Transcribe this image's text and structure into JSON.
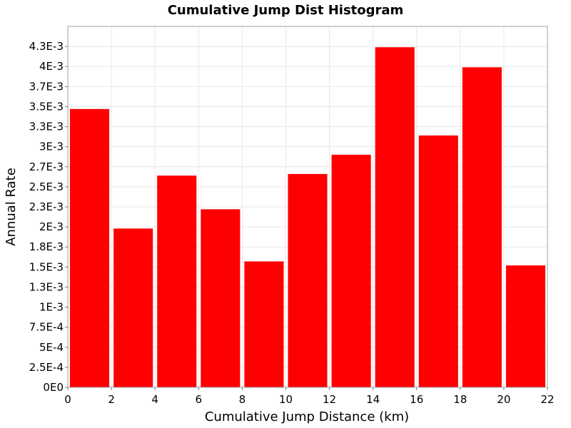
{
  "chart_data": {
    "type": "bar",
    "title": "Cumulative Jump Dist Histogram",
    "xlabel": "Cumulative Jump Distance (km)",
    "ylabel": "Annual Rate",
    "xlim": [
      0,
      22
    ],
    "ylim": [
      0,
      0.0045
    ],
    "grid": true,
    "bar_color": "#ff0000",
    "bin_width": 2,
    "bins": [
      {
        "x_start": 0,
        "x_end": 2,
        "value": 0.00347
      },
      {
        "x_start": 2,
        "x_end": 4,
        "value": 0.00198
      },
      {
        "x_start": 4,
        "x_end": 6,
        "value": 0.00264
      },
      {
        "x_start": 6,
        "x_end": 8,
        "value": 0.00222
      },
      {
        "x_start": 8,
        "x_end": 10,
        "value": 0.00157
      },
      {
        "x_start": 10,
        "x_end": 12,
        "value": 0.00266
      },
      {
        "x_start": 12,
        "x_end": 14,
        "value": 0.0029
      },
      {
        "x_start": 14,
        "x_end": 16,
        "value": 0.00424
      },
      {
        "x_start": 16,
        "x_end": 18,
        "value": 0.00314
      },
      {
        "x_start": 18,
        "x_end": 20,
        "value": 0.00399
      },
      {
        "x_start": 20,
        "x_end": 22,
        "value": 0.00152
      }
    ],
    "x_ticks": [
      {
        "value": 0,
        "label": "0"
      },
      {
        "value": 2,
        "label": "2"
      },
      {
        "value": 4,
        "label": "4"
      },
      {
        "value": 6,
        "label": "6"
      },
      {
        "value": 8,
        "label": "8"
      },
      {
        "value": 10,
        "label": "10"
      },
      {
        "value": 12,
        "label": "12"
      },
      {
        "value": 14,
        "label": "14"
      },
      {
        "value": 16,
        "label": "16"
      },
      {
        "value": 18,
        "label": "18"
      },
      {
        "value": 20,
        "label": "20"
      },
      {
        "value": 22,
        "label": "22"
      }
    ],
    "y_ticks": [
      {
        "value": 0,
        "label": "0E0"
      },
      {
        "value": 0.00025,
        "label": "2.5E-4"
      },
      {
        "value": 0.0005,
        "label": "5E-4"
      },
      {
        "value": 0.00075,
        "label": "7.5E-4"
      },
      {
        "value": 0.001,
        "label": "1E-3"
      },
      {
        "value": 0.00125,
        "label": "1.3E-3"
      },
      {
        "value": 0.0015,
        "label": "1.5E-3"
      },
      {
        "value": 0.00175,
        "label": "1.8E-3"
      },
      {
        "value": 0.002,
        "label": "2E-3"
      },
      {
        "value": 0.00225,
        "label": "2.3E-3"
      },
      {
        "value": 0.0025,
        "label": "2.5E-3"
      },
      {
        "value": 0.00275,
        "label": "2.7E-3"
      },
      {
        "value": 0.003,
        "label": "3E-3"
      },
      {
        "value": 0.00325,
        "label": "3.3E-3"
      },
      {
        "value": 0.0035,
        "label": "3.5E-3"
      },
      {
        "value": 0.00375,
        "label": "3.7E-3"
      },
      {
        "value": 0.004,
        "label": "4E-3"
      },
      {
        "value": 0.00425,
        "label": "4.3E-3"
      }
    ]
  }
}
